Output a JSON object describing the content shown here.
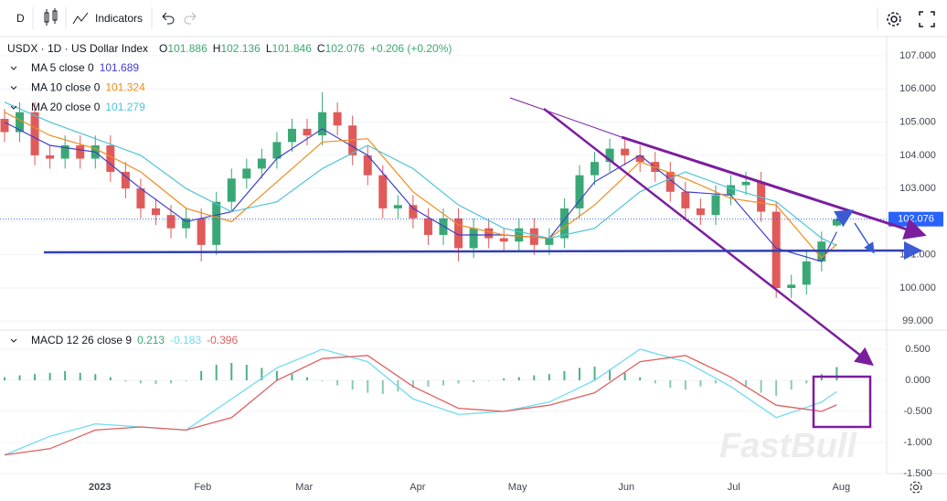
{
  "toolbar": {
    "interval": "D",
    "indicators": "Indicators"
  },
  "watermark": "FastBull",
  "chart_data": [
    {
      "type": "candlestick",
      "title": "USDX · 1D · US Dollar Index",
      "ohlc_prefixes": [
        "O",
        "H",
        "L",
        "C"
      ],
      "change": "+0.206 (+0.20%)",
      "up_color": "#3aa876",
      "down_color": "#e05a5a",
      "xlim": [
        -0.3,
        58.3
      ],
      "ylim": [
        98.76,
        107.58
      ],
      "yticks": [
        {
          "value": 99,
          "label": "99.000"
        },
        {
          "value": 100,
          "label": "100.000"
        },
        {
          "value": 101,
          "label": "101.000"
        },
        {
          "value": 102,
          "label": "102.000"
        },
        {
          "value": 103,
          "label": "103.000"
        },
        {
          "value": 104,
          "label": "104.000"
        },
        {
          "value": 105,
          "label": "105.000"
        },
        {
          "value": 106,
          "label": "106.000"
        },
        {
          "value": 107,
          "label": "107.000"
        }
      ],
      "grid": true,
      "open": [
        105.1,
        104.7,
        105.3,
        104.0,
        103.9,
        104.3,
        103.9,
        104.3,
        103.5,
        103.0,
        102.4,
        102.2,
        101.8,
        102.1,
        101.3,
        102.6,
        103.3,
        103.6,
        103.9,
        104.4,
        104.8,
        104.6,
        105.3,
        104.9,
        104.0,
        103.4,
        102.4,
        102.5,
        102.1,
        101.6,
        102.1,
        101.2,
        101.8,
        101.5,
        101.4,
        101.8,
        101.3,
        101.5,
        102.4,
        103.4,
        103.8,
        104.2,
        104.0,
        103.8,
        103.5,
        102.9,
        102.4,
        102.2,
        102.8,
        103.1,
        103.2,
        102.3,
        100.0,
        100.1,
        100.8,
        101.886
      ],
      "high": [
        105.4,
        105.6,
        105.6,
        104.3,
        104.6,
        104.6,
        104.6,
        104.6,
        103.8,
        103.3,
        102.7,
        102.5,
        102.4,
        102.4,
        102.9,
        103.6,
        103.9,
        104.2,
        104.7,
        105.1,
        105.1,
        105.9,
        105.6,
        105.2,
        104.3,
        103.7,
        102.8,
        102.8,
        102.4,
        102.4,
        102.4,
        102.1,
        102.1,
        101.8,
        102.1,
        102.1,
        101.8,
        102.7,
        103.7,
        104.1,
        104.5,
        104.5,
        104.3,
        104.1,
        103.8,
        103.2,
        102.7,
        103.1,
        103.4,
        103.5,
        103.5,
        102.6,
        100.4,
        101.1,
        101.7,
        102.136
      ],
      "low": [
        104.4,
        104.4,
        103.7,
        103.6,
        103.6,
        103.6,
        103.6,
        103.2,
        102.7,
        102.1,
        101.9,
        101.5,
        101.5,
        100.8,
        101.0,
        102.3,
        103.0,
        103.3,
        103.6,
        104.1,
        104.3,
        104.3,
        104.6,
        103.7,
        103.1,
        102.1,
        102.1,
        101.8,
        101.3,
        101.3,
        100.8,
        100.9,
        101.2,
        101.1,
        101.1,
        101.0,
        101.0,
        101.2,
        102.1,
        103.1,
        103.5,
        103.7,
        103.5,
        103.2,
        102.6,
        102.1,
        101.9,
        101.9,
        102.5,
        102.8,
        102.0,
        99.7,
        99.7,
        99.8,
        100.5,
        101.846
      ],
      "close": [
        104.7,
        105.3,
        104.0,
        103.9,
        104.3,
        103.9,
        104.3,
        103.5,
        103.0,
        102.4,
        102.2,
        101.8,
        102.1,
        101.3,
        102.6,
        103.3,
        103.6,
        103.9,
        104.4,
        104.8,
        104.6,
        105.3,
        104.9,
        104.0,
        103.4,
        102.4,
        102.5,
        102.1,
        101.6,
        102.1,
        101.2,
        101.8,
        101.5,
        101.4,
        101.8,
        101.3,
        101.5,
        102.4,
        103.4,
        103.8,
        104.2,
        104.0,
        103.8,
        103.5,
        102.9,
        102.4,
        102.2,
        102.8,
        103.1,
        103.2,
        102.3,
        100.0,
        100.1,
        100.8,
        101.4,
        102.076
      ],
      "series": [
        {
          "name": "MA 5 close 0",
          "color": "#3f3fc8",
          "x": [
            0,
            3,
            6,
            9,
            12,
            15,
            18,
            21,
            24,
            27,
            30,
            33,
            36,
            39,
            42,
            45,
            48,
            51,
            54,
            55
          ],
          "values": [
            105.0,
            104.3,
            104.1,
            103.0,
            102.0,
            102.3,
            103.9,
            104.8,
            104.0,
            102.4,
            101.6,
            101.6,
            101.5,
            103.2,
            104.0,
            102.9,
            102.8,
            101.2,
            100.8,
            101.689
          ]
        },
        {
          "name": "MA 10 close 0",
          "color": "#f08c1e",
          "x": [
            0,
            3,
            6,
            9,
            12,
            15,
            18,
            21,
            24,
            27,
            30,
            33,
            36,
            39,
            42,
            45,
            48,
            51,
            54,
            55
          ],
          "values": [
            105.3,
            104.6,
            104.2,
            103.5,
            102.4,
            102.0,
            103.2,
            104.4,
            104.5,
            102.9,
            101.9,
            101.6,
            101.5,
            102.5,
            103.8,
            103.3,
            102.7,
            102.5,
            100.9,
            101.324
          ]
        },
        {
          "name": "MA 20 close 0",
          "color": "#4fc3d6",
          "x": [
            0,
            3,
            6,
            9,
            12,
            15,
            18,
            21,
            24,
            27,
            30,
            33,
            36,
            39,
            42,
            45,
            48,
            51,
            54,
            55
          ],
          "values": [
            105.6,
            105.0,
            104.5,
            104.0,
            103.0,
            102.3,
            102.6,
            103.6,
            104.3,
            103.6,
            102.5,
            101.8,
            101.5,
            101.8,
            102.9,
            103.5,
            103.0,
            102.6,
            101.5,
            101.279
          ]
        }
      ]
    },
    {
      "type": "macd",
      "title": "MACD 12 26 close 9",
      "xlim": [
        -0.3,
        58.3
      ],
      "xticks": [
        {
          "value": 6.3,
          "label": "2023"
        },
        {
          "value": 13.1,
          "label": "Feb"
        },
        {
          "value": 19.8,
          "label": "Mar"
        },
        {
          "value": 27.3,
          "label": "Apr"
        },
        {
          "value": 33.9,
          "label": "May"
        },
        {
          "value": 41.1,
          "label": "Jun"
        },
        {
          "value": 48.2,
          "label": "Jul"
        },
        {
          "value": 55.3,
          "label": "Aug"
        }
      ],
      "ylim": [
        -1.456,
        0.794
      ],
      "yticks": [
        {
          "value": -1.5,
          "label": "-1.500"
        },
        {
          "value": -1,
          "label": "-1.000"
        },
        {
          "value": -0.5,
          "label": "-0.500"
        },
        {
          "value": 0,
          "label": "0.000"
        },
        {
          "value": 0.5,
          "label": "0.500"
        }
      ],
      "histogram": {
        "color": "#3aa876",
        "values": [
          0.05,
          0.08,
          0.1,
          0.12,
          0.15,
          0.12,
          0.1,
          0.05,
          -0.02,
          -0.05,
          -0.06,
          -0.05,
          0.0,
          0.15,
          0.25,
          0.28,
          0.25,
          0.2,
          0.15,
          0.1,
          0.05,
          0.0,
          -0.08,
          -0.15,
          -0.2,
          -0.22,
          -0.18,
          -0.12,
          -0.1,
          -0.08,
          -0.05,
          -0.03,
          0.0,
          0.03,
          0.05,
          0.08,
          0.1,
          0.15,
          0.2,
          0.22,
          0.18,
          0.12,
          0.05,
          -0.05,
          -0.12,
          -0.15,
          -0.1,
          -0.05,
          0.0,
          -0.1,
          -0.2,
          -0.25,
          -0.15,
          -0.05,
          0.1,
          0.213
        ]
      },
      "lines": [
        {
          "color": "#6fdcef",
          "x": [
            0,
            3,
            6,
            9,
            12,
            15,
            18,
            21,
            24,
            27,
            30,
            33,
            36,
            39,
            42,
            45,
            48,
            51,
            54,
            55
          ],
          "values": [
            -1.2,
            -0.9,
            -0.7,
            -0.75,
            -0.8,
            -0.3,
            0.2,
            0.5,
            0.3,
            -0.3,
            -0.55,
            -0.5,
            -0.35,
            0.0,
            0.5,
            0.3,
            -0.1,
            -0.6,
            -0.35,
            -0.183
          ]
        },
        {
          "color": "#e06060",
          "x": [
            0,
            3,
            6,
            9,
            12,
            15,
            18,
            21,
            24,
            27,
            30,
            33,
            36,
            39,
            42,
            45,
            48,
            51,
            54,
            55
          ],
          "values": [
            -1.2,
            -1.1,
            -0.8,
            -0.75,
            -0.8,
            -0.6,
            0.0,
            0.35,
            0.4,
            -0.1,
            -0.45,
            -0.5,
            -0.4,
            -0.2,
            0.3,
            0.4,
            0.05,
            -0.4,
            -0.5,
            -0.396
          ]
        }
      ]
    }
  ]
}
